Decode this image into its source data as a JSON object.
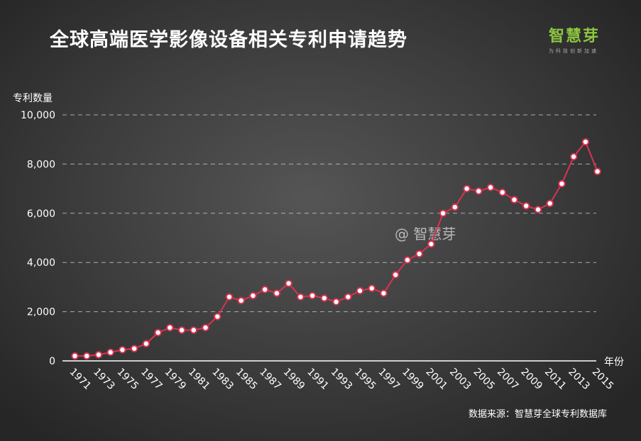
{
  "title": "全球高端医学影像设备相关专利申请趋势",
  "logo": {
    "name": "智慧芽",
    "tagline": "为科技创新加速"
  },
  "watermark": "@ 智慧芽",
  "source": "数据来源：智慧芽全球专利数据库",
  "colors": {
    "line": "#d9334f",
    "marker_fill": "#ffffff",
    "grid": "#c8c8c8",
    "logo": "#8dc63f"
  },
  "chart_data": {
    "type": "line",
    "title": "全球高端医学影像设备相关专利申请趋势",
    "xlabel": "年份",
    "ylabel": "专利数量",
    "ylim": [
      0,
      10000
    ],
    "yticks": [
      "0",
      "2,000",
      "4,000",
      "6,000",
      "8,000",
      "10,000"
    ],
    "ytick_values": [
      0,
      2000,
      4000,
      6000,
      8000,
      10000
    ],
    "x_tick_labels": [
      "1971",
      "1973",
      "1975",
      "1977",
      "1979",
      "1981",
      "1983",
      "1985",
      "1987",
      "1989",
      "1991",
      "1993",
      "1995",
      "1997",
      "1999",
      "2001",
      "2003",
      "2005",
      "2007",
      "2009",
      "2011",
      "2013",
      "2015"
    ],
    "grid": true,
    "x": [
      1971,
      1972,
      1973,
      1974,
      1975,
      1976,
      1977,
      1978,
      1979,
      1980,
      1981,
      1982,
      1983,
      1984,
      1985,
      1986,
      1987,
      1988,
      1989,
      1990,
      1991,
      1992,
      1993,
      1994,
      1995,
      1996,
      1997,
      1998,
      1999,
      2000,
      2001,
      2002,
      2003,
      2004,
      2005,
      2006,
      2007,
      2008,
      2009,
      2010,
      2011,
      2012,
      2013,
      2014,
      2015
    ],
    "series": [
      {
        "values": [
          200,
          200,
          250,
          350,
          450,
          500,
          700,
          1150,
          1350,
          1250,
          1250,
          1350,
          1800,
          2600,
          2450,
          2650,
          2900,
          2750,
          3150,
          2600,
          2650,
          2550,
          2400,
          2600,
          2850,
          2950,
          2750,
          3500,
          4100,
          4350,
          4750,
          6000,
          6250,
          7000,
          6900,
          7050,
          6850,
          6550,
          6300,
          6150,
          6400,
          7200,
          8300,
          8900,
          7700
        ]
      }
    ]
  }
}
